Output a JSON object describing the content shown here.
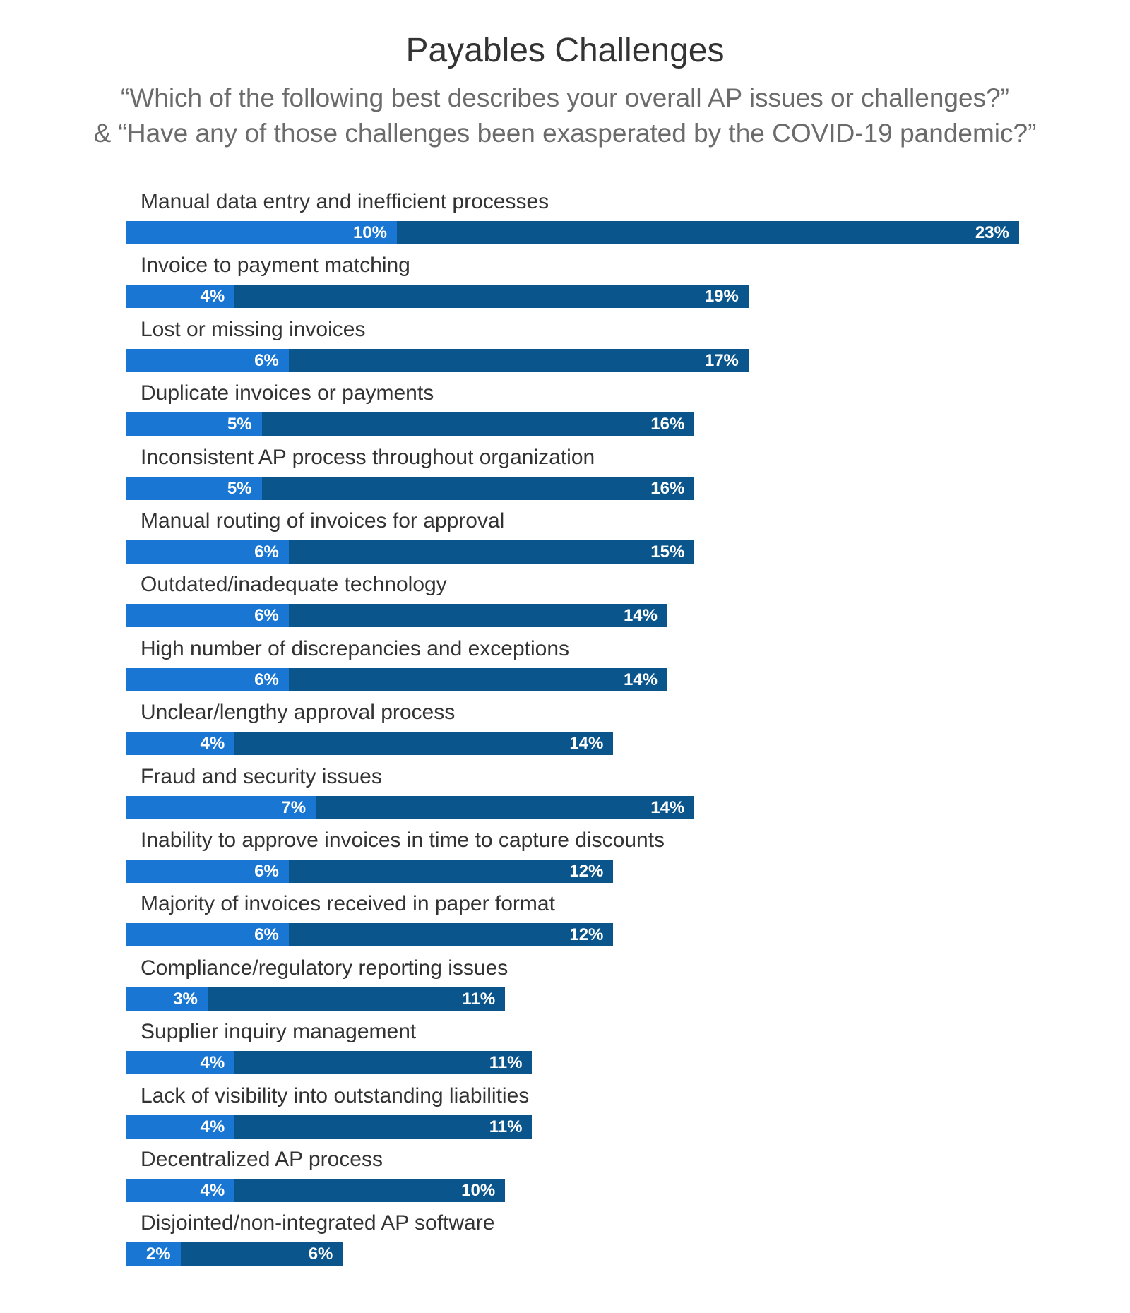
{
  "chart_data": {
    "type": "bar",
    "orientation": "horizontal",
    "stacked": true,
    "title": "Payables Challenges",
    "subtitle": [
      "“Which of the following best describes your overall AP issues or challenges?”",
      "& “Have any of those challenges been exasperated by the COVID-19 pandemic?”"
    ],
    "categories": [
      "Manual data entry and inefficient processes",
      "Invoice to payment matching",
      "Lost or missing invoices",
      "Duplicate invoices or payments",
      "Inconsistent AP process throughout organization",
      "Manual routing of invoices for approval",
      "Outdated/inadequate technology",
      "High number of discrepancies and exceptions",
      "Unclear/lengthy approval process",
      "Fraud and security issues",
      "Inability to approve invoices in time to capture discounts",
      "Majority of invoices received in paper format",
      "Compliance/regulatory reporting issues",
      "Supplier inquiry management",
      "Lack of visibility into outstanding liabilities",
      "Decentralized AP process",
      "Disjointed/non-integrated AP software"
    ],
    "series": [
      {
        "values": [
          10,
          4,
          6,
          5,
          5,
          6,
          6,
          6,
          4,
          7,
          6,
          6,
          3,
          4,
          4,
          4,
          2
        ],
        "color": "#1976d2"
      },
      {
        "values": [
          23,
          19,
          17,
          16,
          16,
          15,
          14,
          14,
          14,
          14,
          12,
          12,
          11,
          11,
          11,
          10,
          6
        ],
        "color": "#0a558c"
      }
    ],
    "value_suffix": "%",
    "grid": false,
    "legend": "none"
  }
}
